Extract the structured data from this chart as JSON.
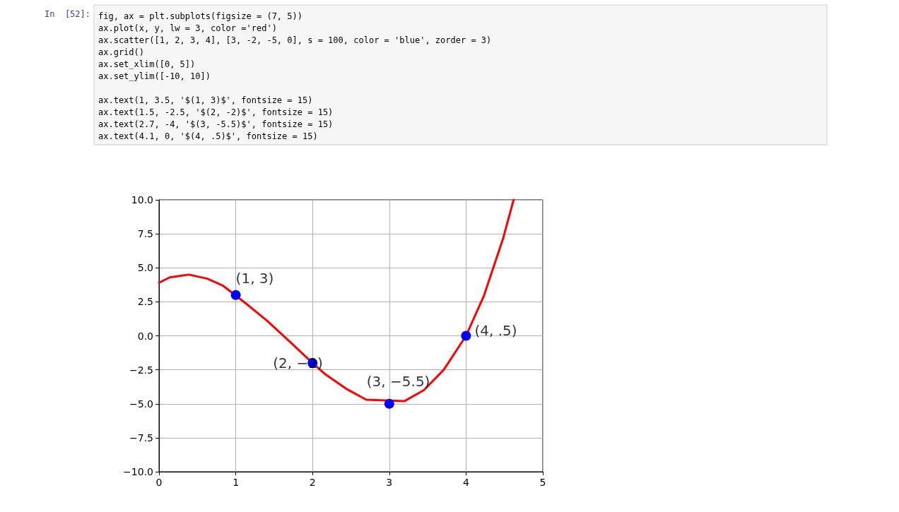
{
  "chart_data": {
    "type": "line",
    "annotations": [
      "In  [52]:",
      "fig, ax = plt.subplots(figsize = (7, 5))\nax.plot(x, y, lw = 3, color ='red')\nax.scatter([1, 2, 3, 4], [3, -2, -5, 0], s = 100, color = 'blue', zorder = 3)\nax.grid()\nax.set_xlim([0, 5])\nax.set_ylim([-10, 10])\n\nax.text(1, 3.5, '$(1, 3)$', fontsize = 15)\nax.text(1.5, -2.5, '$(2, -2)$', fontsize = 15)\nax.text(2.7, -4, '$(3, -5.5)$', fontsize = 15)\nax.text(4.1, 0, '$(4, .5)$', fontsize = 15)",
      {
        "text": "(1, 3)",
        "x": 1,
        "y": 3
      },
      {
        "text": "(2, −2)",
        "x": 2,
        "y": -2
      },
      {
        "text": "(3, −5.5)",
        "x": 3,
        "y": -5
      },
      {
        "text": "(4, .5)",
        "x": 4,
        "y": 0
      }
    ],
    "series": [
      {
        "color": "#ff0000",
        "x": [
          0,
          0.14,
          0.39,
          0.63,
          0.83,
          1.15,
          1.41,
          1.66,
          2,
          2.16,
          2.44,
          2.7,
          3.2,
          3.45,
          3.71,
          4,
          4.23,
          4.48,
          4.62
        ],
        "values": [
          3.9,
          4.3,
          4.5,
          4.2,
          3.7,
          2.3,
          1.1,
          -0.2,
          -2.0,
          -2.8,
          -3.9,
          -4.7,
          -4.8,
          -4.0,
          -2.5,
          0,
          2.9,
          7.1,
          10
        ]
      },
      {
        "type": "scatter",
        "color": "#0000ff",
        "marker": "circle",
        "x": [
          1,
          2,
          3,
          4
        ],
        "values": [
          3,
          -2,
          -5,
          0
        ]
      }
    ],
    "xlim": [
      0,
      5
    ],
    "xticks": [
      0,
      1,
      2,
      3,
      4,
      5
    ],
    "ylim": [
      -10,
      10
    ],
    "yticks": [
      {
        "value": -10,
        "label": "−10.0"
      },
      {
        "value": -7.5,
        "label": "−7.5"
      },
      {
        "value": -5,
        "label": "−5.0"
      },
      {
        "value": -2.5,
        "label": "−2.5"
      },
      {
        "value": 0,
        "label": "0.0"
      },
      {
        "value": 2.5,
        "label": "2.5"
      },
      {
        "value": 5,
        "label": "5.0"
      },
      {
        "value": 7.5,
        "label": "7.5"
      },
      {
        "value": 10,
        "label": "10.0"
      }
    ],
    "grid": true
  }
}
